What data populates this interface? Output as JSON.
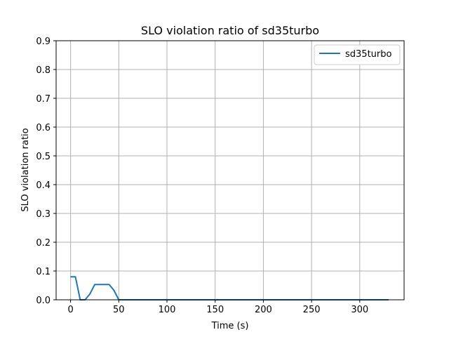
{
  "chart_data": {
    "type": "line",
    "title": "SLO violation ratio of sd35turbo",
    "xlabel": "Time (s)",
    "ylabel": "SLO violation ratio",
    "xlim": [
      -15,
      346
    ],
    "ylim": [
      0,
      0.9
    ],
    "xticks": [
      0,
      50,
      100,
      150,
      200,
      250,
      300
    ],
    "yticks": [
      0.0,
      0.1,
      0.2,
      0.3,
      0.4,
      0.5,
      0.6,
      0.7,
      0.8,
      0.9
    ],
    "xtick_labels": [
      "0",
      "50",
      "100",
      "150",
      "200",
      "250",
      "300"
    ],
    "ytick_labels": [
      "0.0",
      "0.1",
      "0.2",
      "0.3",
      "0.4",
      "0.5",
      "0.6",
      "0.7",
      "0.8",
      "0.9"
    ],
    "grid": true,
    "legend_position": "top-right",
    "series": [
      {
        "name": "sd35turbo",
        "color": "#1f77b4",
        "x": [
          0,
          5,
          10,
          15,
          20,
          25,
          30,
          35,
          40,
          45,
          50,
          55,
          60,
          70,
          80,
          90,
          100,
          120,
          140,
          160,
          180,
          200,
          220,
          240,
          260,
          280,
          300,
          320,
          330
        ],
        "y": [
          0.08,
          0.08,
          0.0,
          0.0,
          0.02,
          0.053,
          0.053,
          0.053,
          0.053,
          0.033,
          0.0,
          0.0,
          0.0,
          0.0,
          0.0,
          0.0,
          0.0,
          0.0,
          0.0,
          0.0,
          0.0,
          0.0,
          0.0,
          0.0,
          0.0,
          0.0,
          0.0,
          0.0,
          0.0
        ]
      }
    ]
  }
}
